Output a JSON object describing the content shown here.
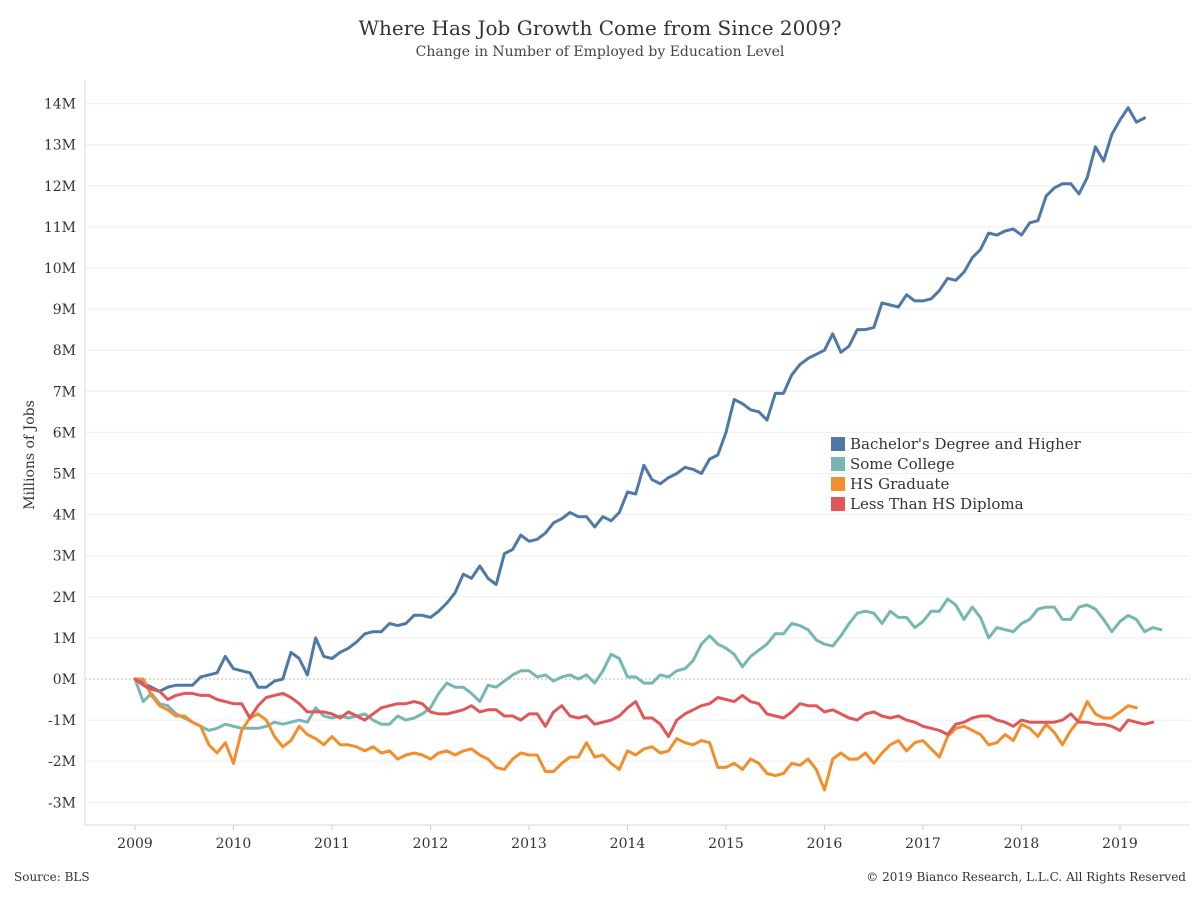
{
  "chart_data": {
    "type": "line",
    "title": "Where Has Job Growth Come from Since 2009?",
    "subtitle": "Change in Number of Employed by Education Level",
    "xlabel": "",
    "ylabel": "Millions of Jobs",
    "x_tick_labels": [
      "2009",
      "2010",
      "2011",
      "2012",
      "2013",
      "2014",
      "2015",
      "2016",
      "2017",
      "2018",
      "2019"
    ],
    "y_tick_labels": [
      "14M",
      "13M",
      "12M",
      "11M",
      "10M",
      "9M",
      "8M",
      "7M",
      "6M",
      "5M",
      "4M",
      "3M",
      "2M",
      "1M",
      "0M",
      "-1M",
      "-2M",
      "-3M"
    ],
    "ylim": [
      -3.5,
      14.5
    ],
    "xlim": [
      2008.5,
      2019.5
    ],
    "x_start": 2009.0,
    "x_step_months": 1,
    "grid": "horizontal",
    "legend_position": "center-right",
    "series": [
      {
        "name": "Bachelor's Degree and Higher",
        "color": "#4e79a7",
        "values": [
          0,
          -0.1,
          -0.2,
          -0.3,
          -0.2,
          -0.15,
          -0.15,
          -0.15,
          0.05,
          0.1,
          0.15,
          0.55,
          0.25,
          0.2,
          0.15,
          -0.2,
          -0.2,
          -0.05,
          0,
          0.65,
          0.5,
          0.1,
          1.0,
          0.55,
          0.5,
          0.65,
          0.75,
          0.9,
          1.1,
          1.15,
          1.15,
          1.35,
          1.3,
          1.35,
          1.55,
          1.55,
          1.5,
          1.65,
          1.85,
          2.1,
          2.55,
          2.45,
          2.75,
          2.45,
          2.3,
          3.05,
          3.15,
          3.5,
          3.35,
          3.4,
          3.55,
          3.8,
          3.9,
          4.05,
          3.95,
          3.95,
          3.7,
          3.95,
          3.85,
          4.05,
          4.55,
          4.5,
          5.2,
          4.85,
          4.75,
          4.9,
          5.0,
          5.15,
          5.1,
          5.0,
          5.35,
          5.45,
          6.0,
          6.8,
          6.7,
          6.55,
          6.5,
          6.3,
          6.95,
          6.95,
          7.4,
          7.65,
          7.8,
          7.9,
          8.0,
          8.4,
          7.95,
          8.1,
          8.5,
          8.5,
          8.55,
          9.15,
          9.1,
          9.05,
          9.35,
          9.2,
          9.2,
          9.25,
          9.45,
          9.75,
          9.7,
          9.9,
          10.25,
          10.45,
          10.85,
          10.8,
          10.9,
          10.95,
          10.8,
          11.1,
          11.15,
          11.75,
          11.95,
          12.05,
          12.05,
          11.8,
          12.2,
          12.95,
          12.6,
          13.25,
          13.6,
          13.9,
          13.55,
          13.65
        ]
      },
      {
        "name": "Some College",
        "color": "#76b7b2",
        "values": [
          0,
          -0.55,
          -0.35,
          -0.6,
          -0.65,
          -0.85,
          -0.95,
          -1.05,
          -1.15,
          -1.25,
          -1.2,
          -1.1,
          -1.15,
          -1.2,
          -1.2,
          -1.2,
          -1.15,
          -1.05,
          -1.1,
          -1.05,
          -1.0,
          -1.05,
          -0.7,
          -0.9,
          -0.95,
          -0.9,
          -0.95,
          -0.9,
          -0.85,
          -1.0,
          -1.1,
          -1.1,
          -0.9,
          -1.0,
          -0.95,
          -0.85,
          -0.7,
          -0.35,
          -0.1,
          -0.2,
          -0.2,
          -0.35,
          -0.55,
          -0.15,
          -0.2,
          -0.05,
          0.1,
          0.2,
          0.2,
          0.05,
          0.1,
          -0.05,
          0.05,
          0.1,
          0.0,
          0.1,
          -0.1,
          0.2,
          0.6,
          0.5,
          0.05,
          0.05,
          -0.1,
          -0.1,
          0.1,
          0.05,
          0.2,
          0.25,
          0.45,
          0.85,
          1.05,
          0.85,
          0.75,
          0.6,
          0.3,
          0.55,
          0.7,
          0.85,
          1.1,
          1.1,
          1.35,
          1.3,
          1.2,
          0.95,
          0.85,
          0.8,
          1.05,
          1.35,
          1.6,
          1.65,
          1.6,
          1.35,
          1.65,
          1.5,
          1.5,
          1.25,
          1.4,
          1.65,
          1.65,
          1.95,
          1.8,
          1.45,
          1.75,
          1.5,
          1.0,
          1.25,
          1.2,
          1.15,
          1.35,
          1.45,
          1.7,
          1.75,
          1.75,
          1.45,
          1.45,
          1.75,
          1.8,
          1.7,
          1.45,
          1.15,
          1.4,
          1.55,
          1.45,
          1.15,
          1.25,
          1.2
        ]
      },
      {
        "name": "HS Graduate",
        "color": "#f28e2b",
        "values": [
          0,
          0,
          -0.4,
          -0.65,
          -0.75,
          -0.9,
          -0.9,
          -1.05,
          -1.15,
          -1.6,
          -1.8,
          -1.55,
          -2.05,
          -1.25,
          -0.95,
          -0.85,
          -1.0,
          -1.4,
          -1.65,
          -1.5,
          -1.15,
          -1.35,
          -1.45,
          -1.6,
          -1.4,
          -1.6,
          -1.6,
          -1.65,
          -1.75,
          -1.65,
          -1.8,
          -1.75,
          -1.95,
          -1.85,
          -1.8,
          -1.85,
          -1.95,
          -1.8,
          -1.75,
          -1.85,
          -1.75,
          -1.7,
          -1.85,
          -1.95,
          -2.15,
          -2.2,
          -1.95,
          -1.8,
          -1.85,
          -1.85,
          -2.25,
          -2.25,
          -2.05,
          -1.9,
          -1.9,
          -1.55,
          -1.9,
          -1.85,
          -2.05,
          -2.2,
          -1.75,
          -1.85,
          -1.7,
          -1.65,
          -1.8,
          -1.75,
          -1.45,
          -1.55,
          -1.6,
          -1.5,
          -1.55,
          -2.15,
          -2.15,
          -2.05,
          -2.2,
          -1.95,
          -2.05,
          -2.3,
          -2.35,
          -2.3,
          -2.05,
          -2.1,
          -1.95,
          -2.2,
          -2.7,
          -1.95,
          -1.8,
          -1.95,
          -1.95,
          -1.8,
          -2.05,
          -1.8,
          -1.6,
          -1.5,
          -1.75,
          -1.55,
          -1.5,
          -1.7,
          -1.9,
          -1.4,
          -1.2,
          -1.15,
          -1.25,
          -1.35,
          -1.6,
          -1.55,
          -1.35,
          -1.5,
          -1.1,
          -1.2,
          -1.4,
          -1.1,
          -1.3,
          -1.6,
          -1.25,
          -1.0,
          -0.55,
          -0.85,
          -0.95,
          -0.95,
          -0.8,
          -0.65,
          -0.7
        ]
      },
      {
        "name": "Less Than HS Diploma",
        "color": "#e15759",
        "values": [
          0,
          -0.15,
          -0.25,
          -0.3,
          -0.5,
          -0.4,
          -0.35,
          -0.35,
          -0.4,
          -0.4,
          -0.5,
          -0.55,
          -0.6,
          -0.6,
          -0.95,
          -0.65,
          -0.45,
          -0.4,
          -0.35,
          -0.45,
          -0.6,
          -0.8,
          -0.8,
          -0.8,
          -0.85,
          -0.95,
          -0.8,
          -0.9,
          -1.0,
          -0.85,
          -0.7,
          -0.65,
          -0.6,
          -0.6,
          -0.55,
          -0.6,
          -0.8,
          -0.85,
          -0.85,
          -0.8,
          -0.75,
          -0.65,
          -0.8,
          -0.75,
          -0.75,
          -0.9,
          -0.9,
          -1.0,
          -0.85,
          -0.85,
          -1.15,
          -0.8,
          -0.65,
          -0.9,
          -0.95,
          -0.9,
          -1.1,
          -1.05,
          -1.0,
          -0.9,
          -0.7,
          -0.55,
          -0.95,
          -0.95,
          -1.1,
          -1.4,
          -1.0,
          -0.85,
          -0.75,
          -0.65,
          -0.6,
          -0.45,
          -0.5,
          -0.55,
          -0.4,
          -0.55,
          -0.6,
          -0.85,
          -0.9,
          -0.95,
          -0.8,
          -0.6,
          -0.65,
          -0.65,
          -0.8,
          -0.75,
          -0.85,
          -0.95,
          -1.0,
          -0.85,
          -0.8,
          -0.9,
          -0.95,
          -0.9,
          -1.0,
          -1.05,
          -1.15,
          -1.2,
          -1.25,
          -1.35,
          -1.1,
          -1.05,
          -0.95,
          -0.9,
          -0.9,
          -1.0,
          -1.05,
          -1.15,
          -1.0,
          -1.05,
          -1.05,
          -1.05,
          -1.05,
          -1.0,
          -0.85,
          -1.05,
          -1.05,
          -1.1,
          -1.1,
          -1.15,
          -1.25,
          -1.0,
          -1.05,
          -1.1,
          -1.05
        ]
      }
    ]
  },
  "footer": {
    "source": "Source: BLS",
    "copyright": "© 2019 Bianco Research, L.L.C. All Rights Reserved"
  }
}
